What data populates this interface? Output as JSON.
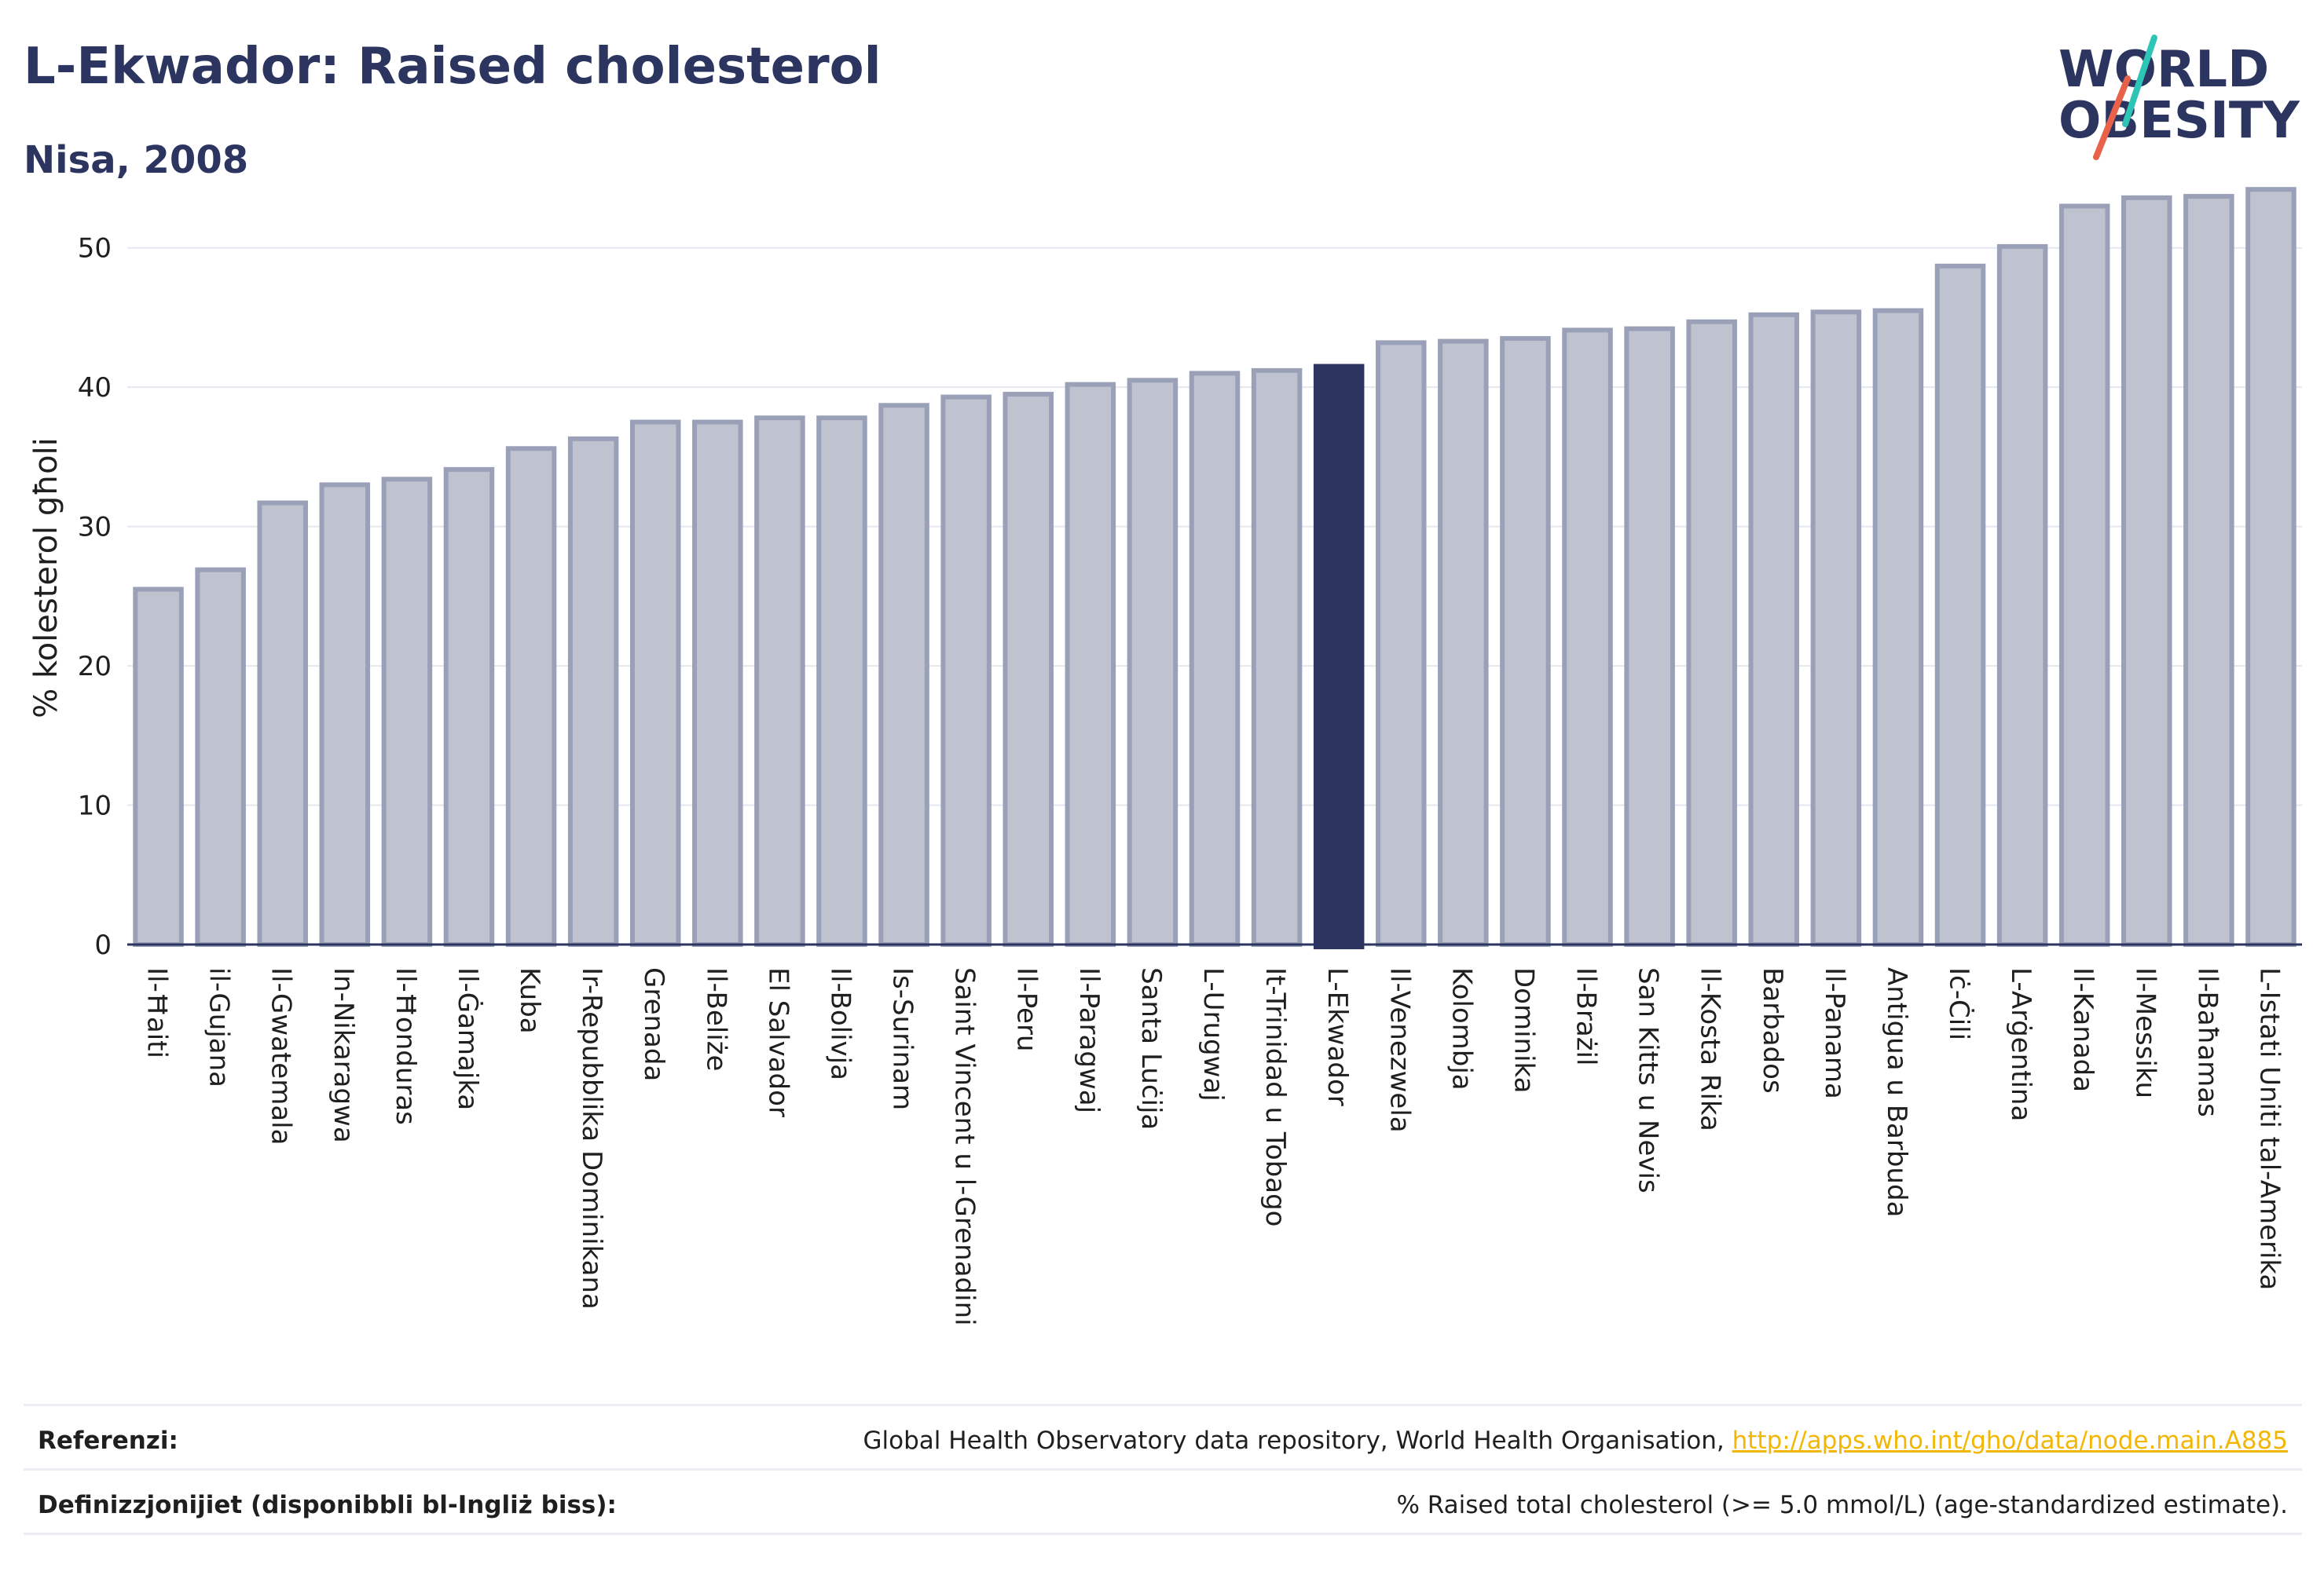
{
  "header": {
    "title": "L-Ekwador: Raised cholesterol",
    "subtitle": "Nisa, 2008"
  },
  "logo": {
    "line1": "WORLD",
    "line2": "OBESITY",
    "color": "#2b3560",
    "slash_colors": [
      "#2ec4b6",
      "#e8624a"
    ]
  },
  "chart_data": {
    "type": "bar",
    "ylabel": "% kolesterol għoli",
    "ylim": [
      0,
      55
    ],
    "yticks": [
      0,
      10,
      20,
      30,
      40,
      50
    ],
    "grid": true,
    "highlight": "L-Ekwador",
    "colors": {
      "bar": "#bfc2cf",
      "bar_border": "#9aa0b8",
      "highlight": "#2b3560",
      "axis": "#2b3560",
      "grid": "#e6e7ee"
    },
    "categories": [
      "Il-Ħaiti",
      "il-Gujana",
      "Il-Gwatemala",
      "In-Nikaragwa",
      "Il-Ħonduras",
      "Il-Ġamajka",
      "Kuba",
      "Ir-Repubblika Dominikana",
      "Grenada",
      "Il-Beliże",
      "El Salvador",
      "Il-Bolivja",
      "Is-Surinam",
      "Saint Vincent u l-Grenadini",
      "Il-Peru",
      "Il-Paragwaj",
      "Santa Luċija",
      "L-Urugwaj",
      "It-Trinidad u Tobago",
      "L-Ekwador",
      "Il-Venezwela",
      "Kolombja",
      "Dominika",
      "Il-Brażil",
      "San Kitts u Nevis",
      "Il-Kosta Rika",
      "Barbados",
      "Il-Panama",
      "Antigua u Barbuda",
      "Iċ-Ċili",
      "L-Arġentina",
      "Il-Kanada",
      "Il-Messiku",
      "Il-Baħamas",
      "L-Istati Uniti tal-Amerika"
    ],
    "values": [
      25.5,
      26.9,
      31.7,
      33.0,
      33.4,
      34.1,
      35.6,
      36.3,
      37.5,
      37.5,
      37.8,
      37.8,
      38.7,
      39.3,
      39.5,
      40.2,
      40.5,
      41.0,
      41.2,
      41.5,
      43.2,
      43.3,
      43.5,
      44.1,
      44.2,
      44.7,
      45.2,
      45.4,
      45.5,
      48.7,
      50.1,
      53.0,
      53.6,
      53.7,
      54.2
    ]
  },
  "footer": {
    "references_label": "Referenzi:",
    "references_text": "Global Health Observatory data repository, World Health Organisation, ",
    "references_link": "http://apps.who.int/gho/data/node.main.A885",
    "definitions_label": "Definizzjonijiet (disponibbli bl-Ingliż biss):",
    "definitions_text": "% Raised total cholesterol (>= 5.0 mmol/L) (age-standardized estimate)."
  }
}
